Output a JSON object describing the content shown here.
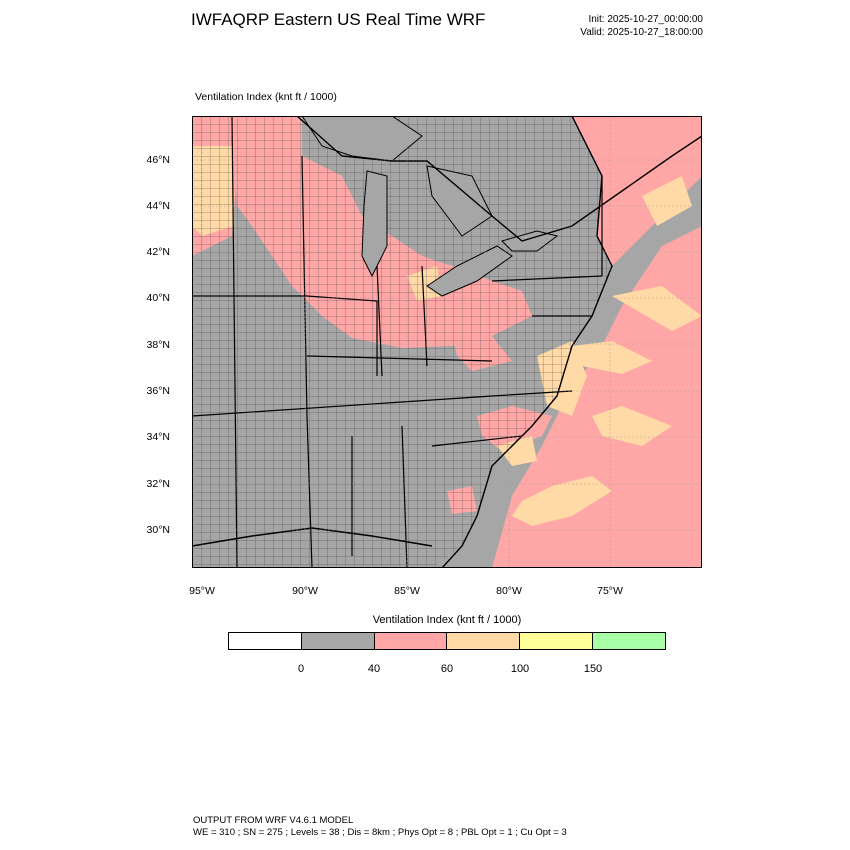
{
  "header": {
    "title": "IWFAQRP Eastern US Real Time WRF",
    "init": "Init: 2025-10-27_00:00:00",
    "valid": "Valid: 2025-10-27_18:00:00"
  },
  "map": {
    "field_label": "Ventilation Index   (knt ft / 1000)",
    "lat_labels": [
      "46°N",
      "44°N",
      "42°N",
      "40°N",
      "38°N",
      "36°N",
      "34°N",
      "32°N",
      "30°N"
    ],
    "lon_labels": [
      "95°W",
      "90°W",
      "85°W",
      "80°W",
      "75°W"
    ]
  },
  "legend": {
    "title": "Ventilation Index  (knt ft / 1000)",
    "colors": [
      "#ffffff",
      "#a6a6a6",
      "#ffa6a6",
      "#ffd9a6",
      "#ffff99",
      "#a6ffa6"
    ],
    "ticks": [
      "0",
      "40",
      "60",
      "100",
      "150"
    ]
  },
  "footer": {
    "line1": "OUTPUT FROM WRF V4.6.1 MODEL",
    "line2": "WE = 310 ; SN = 275 ; Levels = 38 ; Dis = 8km ; Phys Opt = 8 ; PBL Opt = 1 ; Cu Opt = 3"
  }
}
